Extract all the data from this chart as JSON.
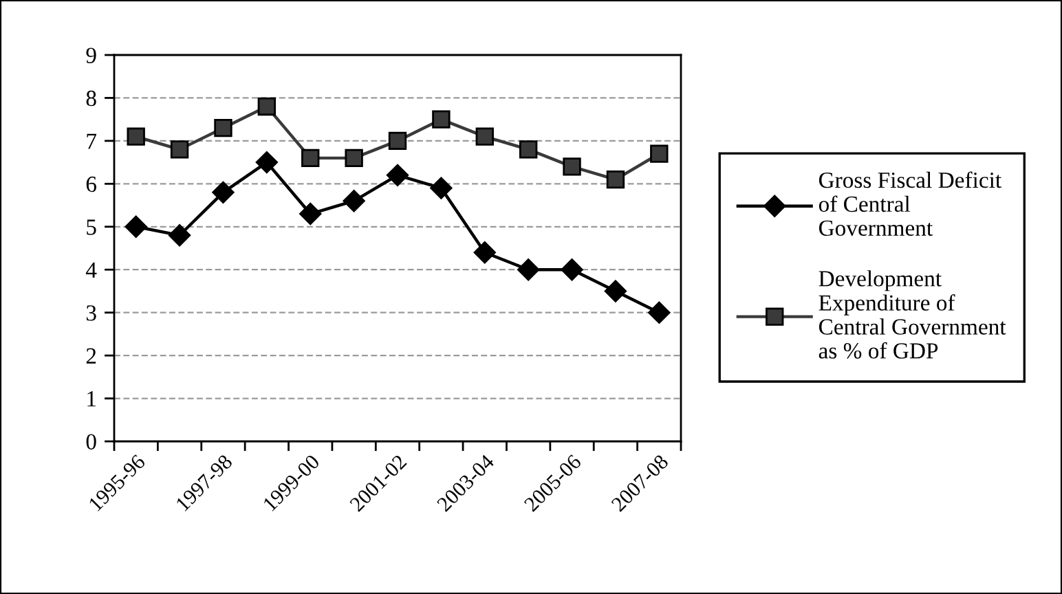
{
  "chart_data": {
    "type": "line",
    "categories": [
      "1995-96",
      null,
      "1997-98",
      null,
      "1999-00",
      null,
      "2001-02",
      null,
      "2003-04",
      null,
      "2005-06",
      null,
      "2007-08"
    ],
    "series": [
      {
        "name": "Gross Fiscal Deficit\nof Central\nGovernment",
        "color": "#000000",
        "marker": "diamond",
        "values": [
          5.0,
          4.8,
          5.8,
          6.5,
          5.3,
          5.6,
          6.2,
          5.9,
          4.4,
          4.0,
          4.0,
          3.5,
          3.0
        ]
      },
      {
        "name": "Development\nExpenditure of\nCentral Government\nas % of GDP",
        "color": "#3a3a3a",
        "marker": "square",
        "values": [
          7.1,
          6.8,
          7.3,
          7.8,
          6.6,
          6.6,
          7.0,
          7.5,
          7.1,
          6.8,
          6.4,
          6.1,
          6.7
        ]
      }
    ],
    "ylim": [
      0,
      9
    ],
    "yticks": [
      0,
      1,
      2,
      3,
      4,
      5,
      6,
      7,
      8,
      9
    ],
    "grid": "y",
    "legend": "right",
    "line_style": "solid"
  }
}
